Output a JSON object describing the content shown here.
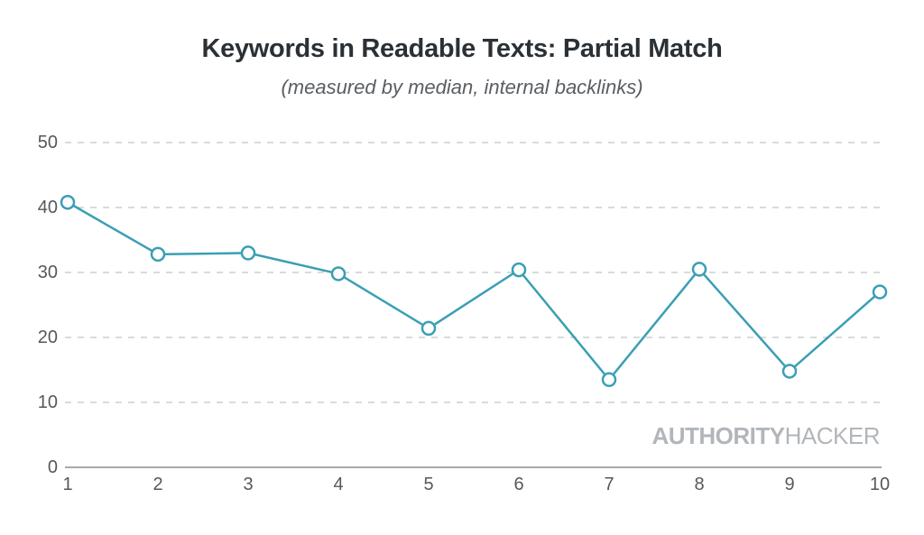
{
  "header": {
    "title": "Keywords in Readable Texts: Partial Match",
    "subtitle": "(measured by median, internal backlinks)"
  },
  "branding": {
    "logo_bold": "AUTHORITY",
    "logo_light": "HACKER"
  },
  "colors": {
    "line": "#3a9fb4",
    "marker_fill": "#ffffff",
    "gridline": "#cbcfd2",
    "axis": "#a6aaae",
    "tick_text": "#54595d",
    "title_text": "#2b3035",
    "logo_text": "#b2b6ba"
  },
  "chart_data": {
    "type": "line",
    "title": "Keywords in Readable Texts: Partial Match",
    "subtitle": "(measured by median, internal backlinks)",
    "x": [
      1,
      2,
      3,
      4,
      5,
      6,
      7,
      8,
      9,
      10
    ],
    "values": [
      40.8,
      32.8,
      33,
      29.8,
      21.4,
      30.4,
      13.5,
      30.5,
      14.8,
      27
    ],
    "xlabel": "",
    "ylabel": "",
    "ylim": [
      0,
      50
    ],
    "yticks": [
      0,
      10,
      20,
      30,
      40,
      50
    ],
    "grid": "horizontal-dashed",
    "legend": "none",
    "marker": "open-circle"
  }
}
